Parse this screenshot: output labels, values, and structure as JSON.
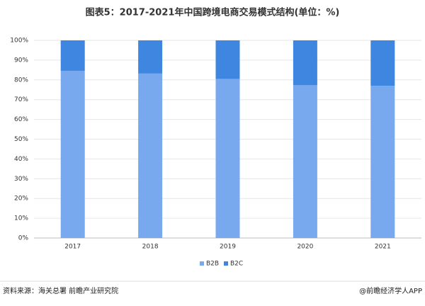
{
  "chart_data": {
    "type": "stacked_bar",
    "title": "图表5：2017-2021年中国跨境电商交易模式结构(单位：%)",
    "categories": [
      "2017",
      "2018",
      "2019",
      "2020",
      "2021"
    ],
    "series": [
      {
        "name": "B2B",
        "color": "#78a9ee",
        "values": [
          84.6,
          83.2,
          80.5,
          77.3,
          77.0
        ]
      },
      {
        "name": "B2C",
        "color": "#3f86e0",
        "values": [
          15.4,
          16.8,
          19.5,
          22.7,
          23.0
        ]
      }
    ],
    "ylim": [
      0,
      100
    ],
    "yticks": [
      {
        "value": 0,
        "label": "0%"
      },
      {
        "value": 10,
        "label": "10%"
      },
      {
        "value": 20,
        "label": "20%"
      },
      {
        "value": 30,
        "label": "30%"
      },
      {
        "value": 40,
        "label": "40%"
      },
      {
        "value": 50,
        "label": "50%"
      },
      {
        "value": 60,
        "label": "60%"
      },
      {
        "value": 70,
        "label": "70%"
      },
      {
        "value": 80,
        "label": "80%"
      },
      {
        "value": 90,
        "label": "90%"
      },
      {
        "value": 100,
        "label": "100%"
      }
    ],
    "grid": true,
    "legend": "bottom",
    "source": "资料来源：海关总署 前瞻产业研究院",
    "credit": "@前瞻经济学人APP"
  }
}
